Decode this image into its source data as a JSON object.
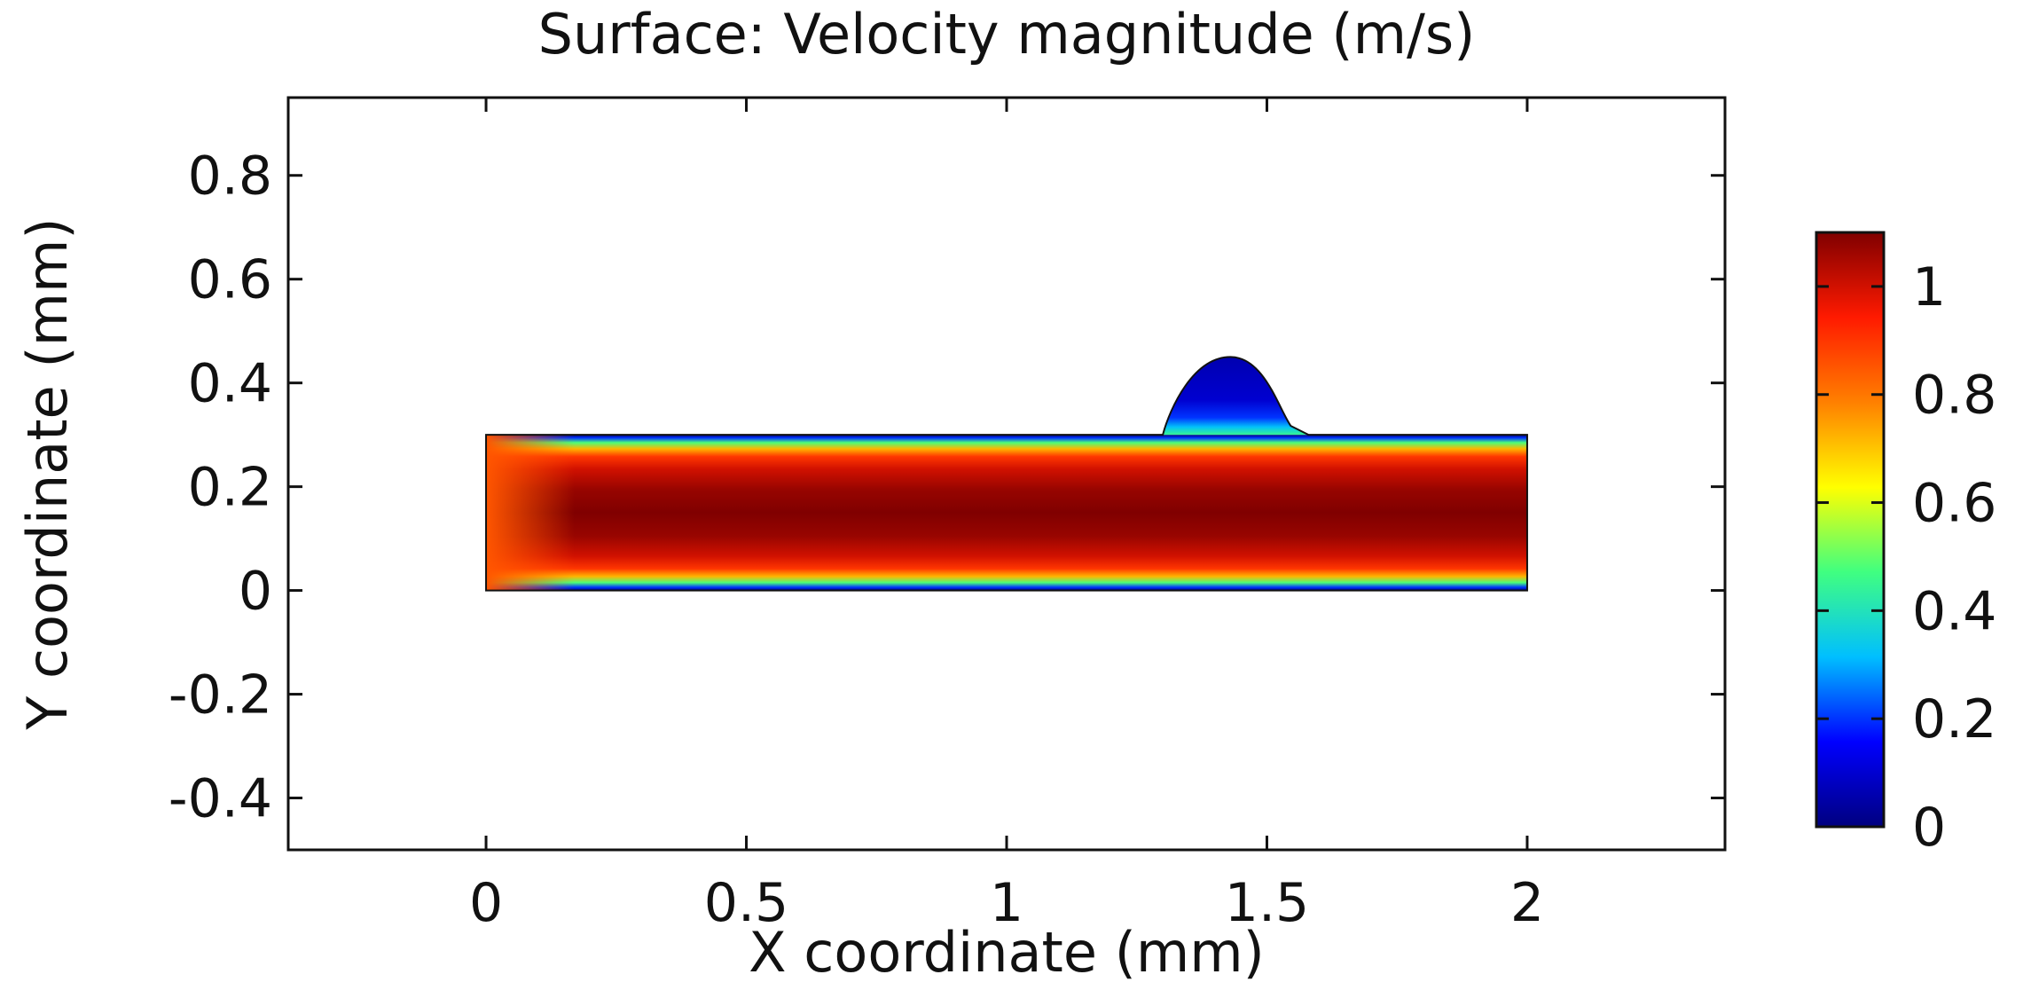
{
  "chart_data": {
    "type": "heatmap",
    "title": "Surface: Velocity magnitude (m/s)",
    "xlabel": "X coordinate (mm)",
    "ylabel": "Y coordinate (mm)",
    "xlim": [
      -0.38,
      2.38
    ],
    "ylim": [
      -0.5,
      0.95
    ],
    "x_ticks": [
      0,
      0.5,
      1,
      1.5,
      2
    ],
    "x_tick_labels": [
      "0",
      "0.5",
      "1",
      "1.5",
      "2"
    ],
    "y_ticks": [
      -0.4,
      -0.2,
      0,
      0.2,
      0.4,
      0.6,
      0.8
    ],
    "y_tick_labels": [
      "-0.4",
      "-0.2",
      "0",
      "0.2",
      "0.4",
      "0.6",
      "0.8"
    ],
    "field": {
      "quantity": "Velocity magnitude",
      "unit": "m/s",
      "channel": {
        "x": [
          0,
          2
        ],
        "y": [
          0,
          0.3
        ]
      },
      "bump": {
        "x_start": 1.3,
        "x_peak": 1.43,
        "x_end": 1.58,
        "y_peak": 0.45
      },
      "inlet_velocity": 0.85,
      "max_velocity": 1.1
    },
    "colorbar": {
      "range": [
        0,
        1.1
      ],
      "ticks": [
        0,
        0.2,
        0.4,
        0.6,
        0.8,
        1
      ],
      "tick_labels": [
        "0",
        "0.2",
        "0.4",
        "0.6",
        "0.8",
        "1"
      ],
      "colormap": "rainbow",
      "stops": [
        "#00007f",
        "#0000ff",
        "#00bfff",
        "#40ff80",
        "#ffff00",
        "#ff8000",
        "#ff1a00",
        "#800000"
      ]
    }
  }
}
